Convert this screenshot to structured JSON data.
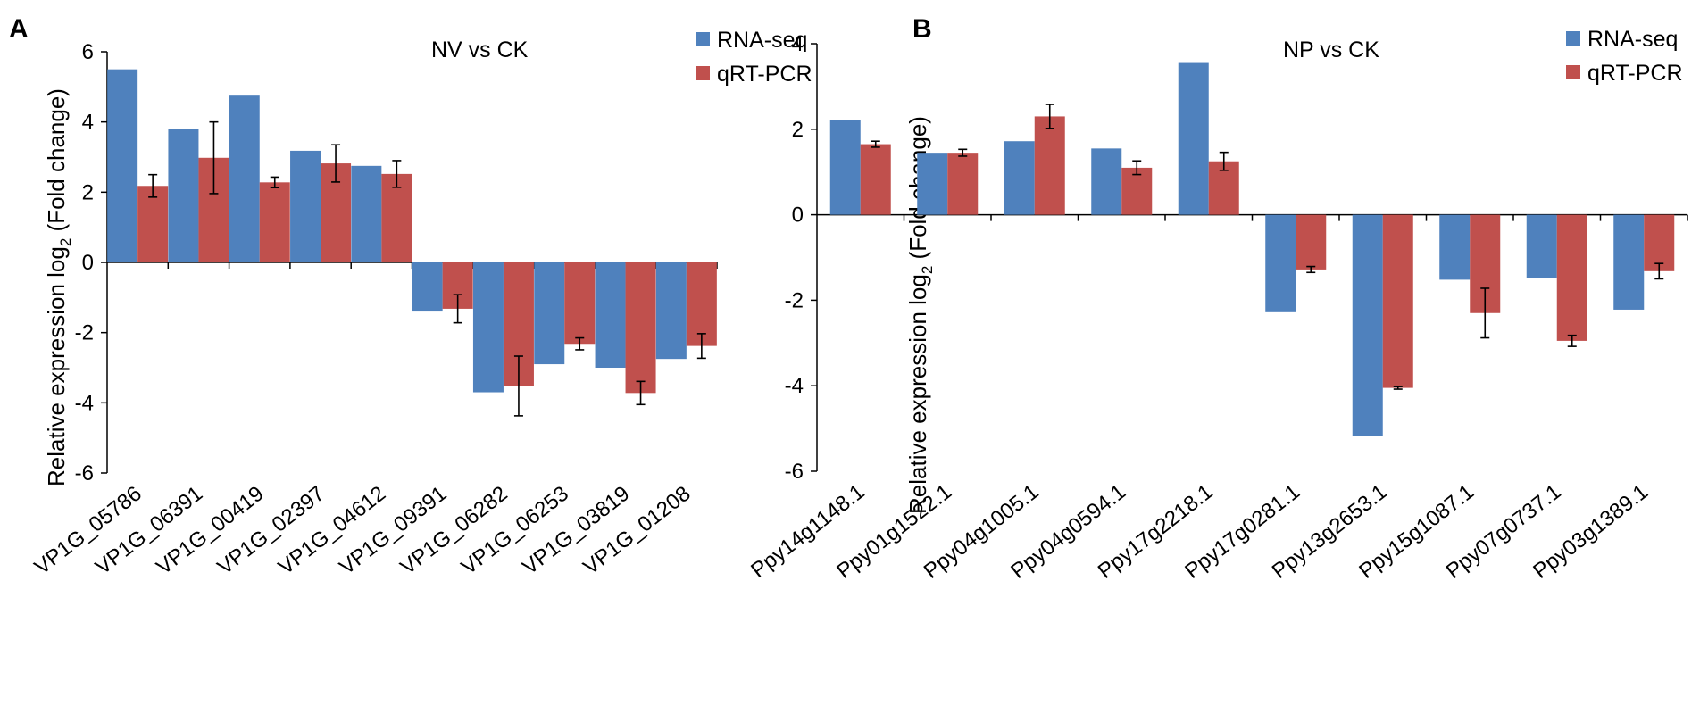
{
  "chart_data": [
    {
      "type": "bar",
      "panel": "A",
      "title": "NV vs CK",
      "xlabel": "",
      "ylabel": "Relative expression log",
      "ylabel_sub": "2",
      "ylabel_tail": " (Fold change)",
      "ylim": [
        -6,
        6
      ],
      "yticks": [
        "6",
        "4",
        "2",
        "0",
        "-2",
        "-4",
        "-6"
      ],
      "ytick_values": [
        6,
        4,
        2,
        0,
        -2,
        -4,
        -6
      ],
      "categories": [
        "VP1G_05786",
        "VP1G_06391",
        "VP1G_00419",
        "VP1G_02397",
        "VP1G_04612",
        "VP1G_09391",
        "VP1G_06282",
        "VP1G_06253",
        "VP1G_03819",
        "VP1G_01208"
      ],
      "series": [
        {
          "name": "RNA-seq",
          "color": "#4F81BD",
          "values": [
            5.5,
            3.8,
            4.75,
            3.18,
            2.75,
            -1.4,
            -3.7,
            -2.9,
            -3.0,
            -2.75
          ]
        },
        {
          "name": "qRT-PCR",
          "color": "#C0504D",
          "values": [
            2.18,
            2.98,
            2.28,
            2.82,
            2.52,
            -1.32,
            -3.52,
            -2.32,
            -3.72,
            -2.38
          ],
          "errors": [
            0.32,
            1.02,
            0.15,
            0.53,
            0.38,
            0.4,
            0.85,
            0.17,
            0.33,
            0.35
          ]
        }
      ],
      "legend": "top-right"
    },
    {
      "type": "bar",
      "panel": "B",
      "title": "NP vs CK",
      "xlabel": "",
      "ylabel": "Relative expression log",
      "ylabel_sub": "2",
      "ylabel_tail": " (Fold change)",
      "ylim": [
        -6,
        4
      ],
      "yticks": [
        "4",
        "2",
        "0",
        "-2",
        "-4",
        "-6"
      ],
      "ytick_values": [
        4,
        2,
        0,
        -2,
        -4,
        -6
      ],
      "categories": [
        "Ppy14g1148.1",
        "Ppy01g1522.1",
        "Ppy04g1005.1",
        "Ppy04g0594.1",
        "Ppy17g2218.1",
        "Ppy17g0281.1",
        "Ppy13g2653.1",
        "Ppy15g1087.1",
        "Ppy07g0737.1",
        "Ppy03g1389.1"
      ],
      "series": [
        {
          "name": "RNA-seq",
          "color": "#4F81BD",
          "values": [
            2.22,
            1.45,
            1.72,
            1.55,
            3.55,
            -2.28,
            -5.18,
            -1.52,
            -1.48,
            -2.22
          ]
        },
        {
          "name": "qRT-PCR",
          "color": "#C0504D",
          "values": [
            1.65,
            1.45,
            2.3,
            1.1,
            1.25,
            -1.28,
            -4.05,
            -2.3,
            -2.95,
            -1.32
          ],
          "errors": [
            0.07,
            0.08,
            0.28,
            0.16,
            0.21,
            0.07,
            0.03,
            0.58,
            0.13,
            0.18
          ]
        }
      ],
      "legend": "top-right"
    }
  ]
}
